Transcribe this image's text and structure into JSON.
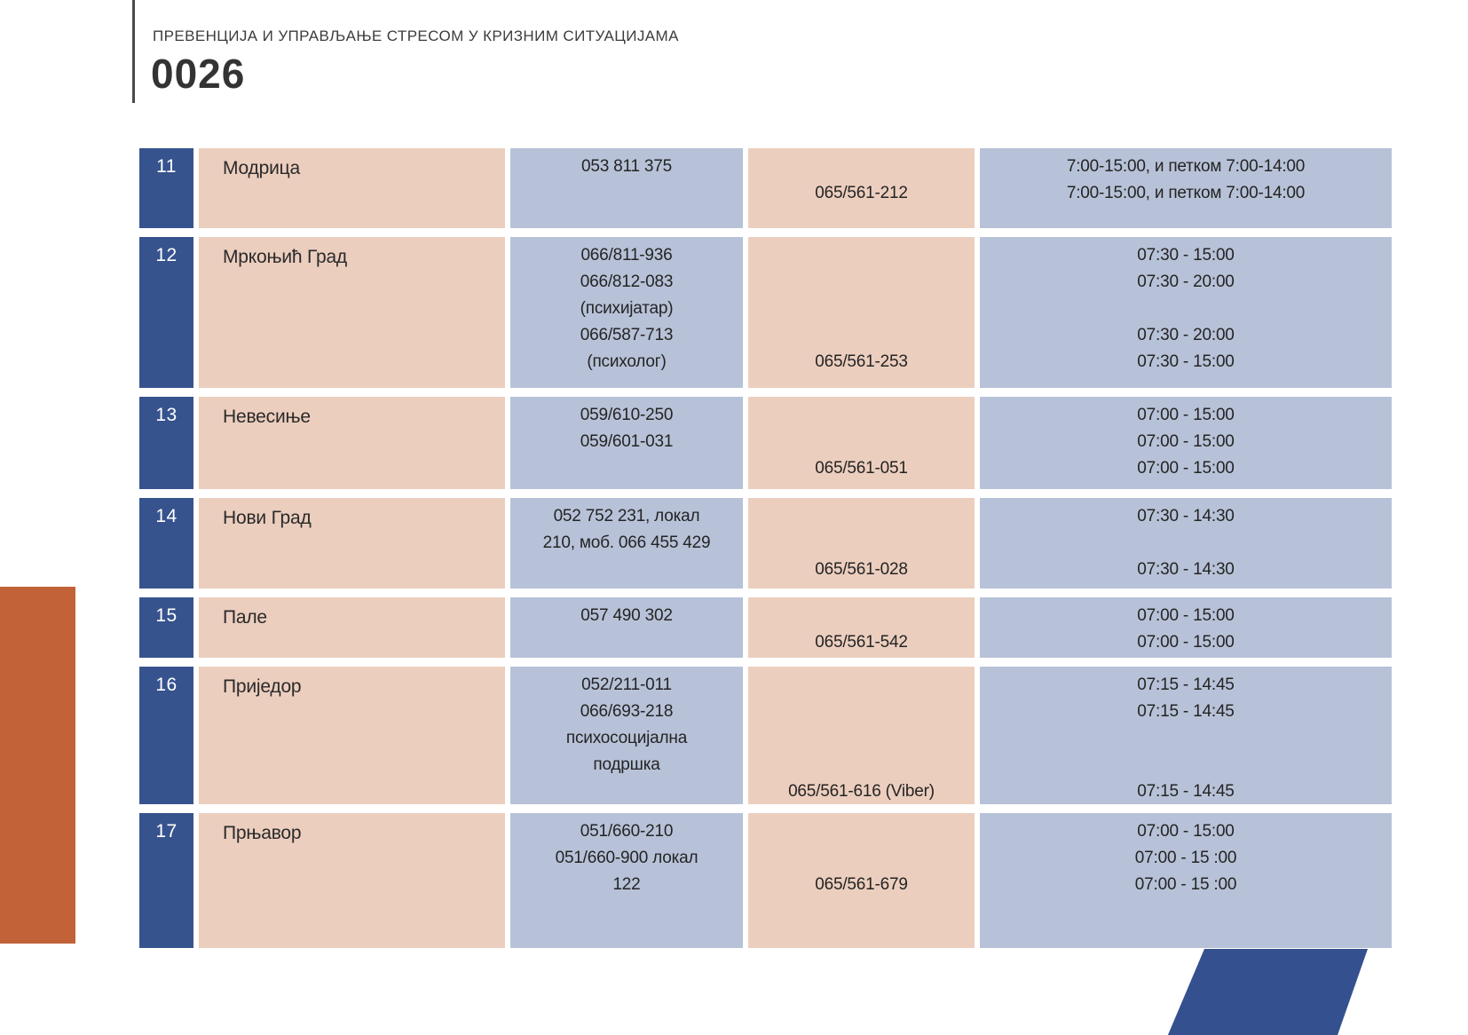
{
  "page": {
    "kicker": "ПРЕВЕНЦИЈА И УПРАВЉАЊЕ СТРЕСОМ У КРИЗНИМ СИТУАЦИЈАМА",
    "page_number": "0026"
  },
  "colors": {
    "row_number_blue": "#37538E",
    "pink": "#ECCEBE",
    "light_blue": "#B7C2D8",
    "orange": "#C26238",
    "parallelogram_blue": "#35508F"
  },
  "table": {
    "rows": [
      {
        "num": "11",
        "city": "Модрица",
        "phones": [
          "053 811 375"
        ],
        "mobile": [
          "",
          "065/561-212"
        ],
        "hours": [
          "7:00-15:00, и петком 7:00-14:00",
          "7:00-15:00, и петком 7:00-14:00"
        ]
      },
      {
        "num": "12",
        "city": "Мркоњић Град",
        "phones": [
          "066/811-936",
          "066/812-083",
          "(психијатар)",
          "066/587-713",
          "(психолог)"
        ],
        "mobile": [
          "",
          "",
          "",
          "",
          "065/561-253"
        ],
        "hours": [
          "07:30 - 15:00",
          "07:30 - 20:00",
          "",
          "07:30 - 20:00",
          "07:30 - 15:00"
        ]
      },
      {
        "num": "13",
        "city": "Невесиње",
        "phones": [
          "059/610-250",
          "059/601-031"
        ],
        "mobile": [
          "",
          "",
          "065/561-051"
        ],
        "hours": [
          "07:00 - 15:00",
          "07:00 - 15:00",
          "07:00 - 15:00"
        ]
      },
      {
        "num": "14",
        "city": "Нови Град",
        "phones": [
          "052 752 231, локал",
          "210, моб. 066 455 429"
        ],
        "mobile": [
          "",
          "",
          "065/561-028"
        ],
        "hours": [
          "07:30 - 14:30",
          "",
          "07:30 - 14:30"
        ]
      },
      {
        "num": "15",
        "city": "Пале",
        "phones": [
          "057 490 302"
        ],
        "mobile": [
          "",
          "065/561-542"
        ],
        "hours": [
          "07:00 - 15:00",
          "07:00 - 15:00"
        ]
      },
      {
        "num": "16",
        "city": "Приједор",
        "phones": [
          "052/211-011",
          "066/693-218",
          "психосоцијална",
          "подршка"
        ],
        "mobile": [
          "",
          "",
          "",
          "",
          "065/561-616 (Viber)"
        ],
        "hours": [
          "07:15 - 14:45",
          "07:15 - 14:45",
          "",
          "",
          "07:15 - 14:45"
        ]
      },
      {
        "num": "17",
        "city": "Прњавор",
        "phones": [
          "051/660-210",
          "051/660-900 локал",
          "122"
        ],
        "mobile": [
          "",
          "",
          "065/561-679"
        ],
        "hours": [
          "07:00 - 15:00",
          "07:00 - 15 :00",
          "07:00 - 15 :00"
        ]
      }
    ]
  }
}
